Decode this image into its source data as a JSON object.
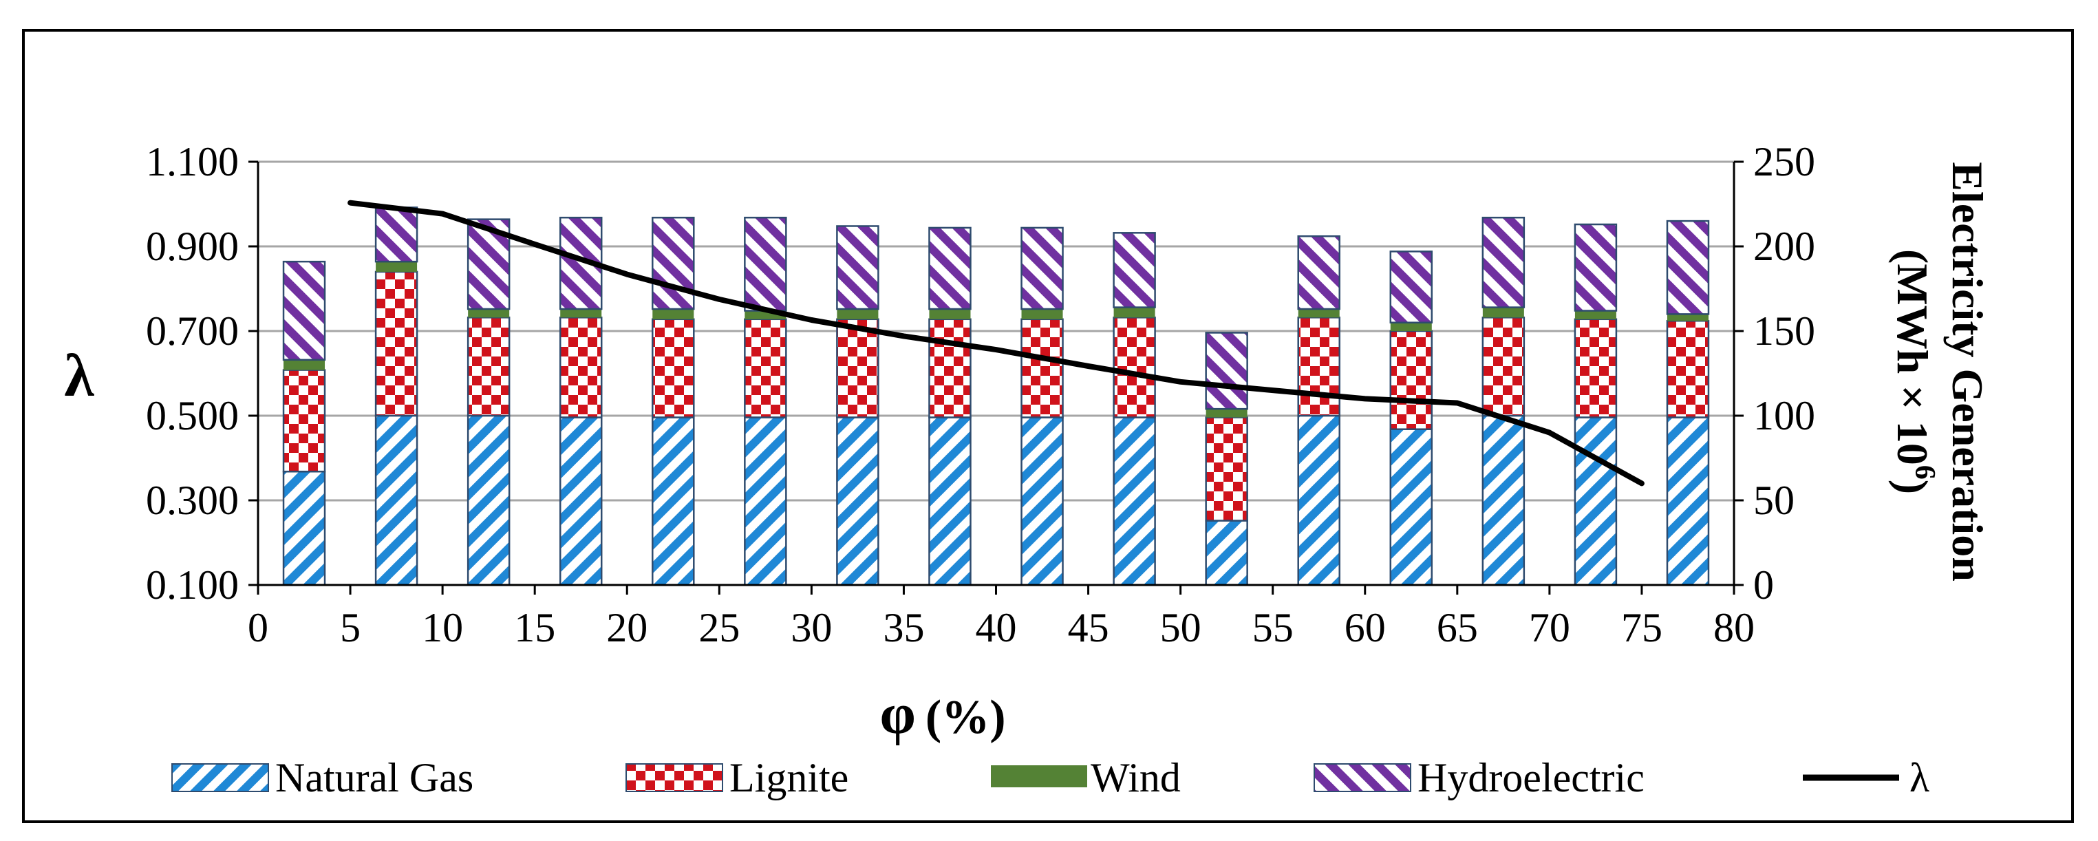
{
  "chart_data": {
    "type": "bar",
    "subtype": "stacked-bar-with-line",
    "x_axis": {
      "label_symbol": "φ",
      "label_unit": "(%)",
      "range": [
        0,
        80
      ],
      "ticks": [
        "0",
        "5",
        "10",
        "15",
        "20",
        "25",
        "30",
        "35",
        "40",
        "45",
        "50",
        "55",
        "60",
        "65",
        "70",
        "75",
        "80"
      ]
    },
    "y_left": {
      "label": "λ",
      "range": [
        0.1,
        1.1
      ],
      "ticks": [
        "0.100",
        "0.300",
        "0.500",
        "0.700",
        "0.900",
        "1.100"
      ],
      "grid": true
    },
    "y_right": {
      "label_line1": "Electricity Generation",
      "label_line2_prefix": "(MWh × 10",
      "label_line2_sup": "6",
      "label_line2_suffix": ")",
      "range": [
        0,
        250
      ],
      "ticks": [
        "0",
        "50",
        "100",
        "150",
        "200",
        "250"
      ]
    },
    "bar_x_centers": [
      2.5,
      7.5,
      12.5,
      17.5,
      22.5,
      27.5,
      32.5,
      37.5,
      42.5,
      47.5,
      52.5,
      57.5,
      62.5,
      67.5,
      72.5,
      77.5
    ],
    "series": [
      {
        "name": "Natural Gas",
        "pattern": "diagonal-stripes",
        "color": "#1f88d6",
        "values": [
          67,
          100,
          100,
          99,
          99,
          99,
          99,
          99,
          99,
          99,
          38,
          100,
          92,
          100,
          99,
          99
        ]
      },
      {
        "name": "Lignite",
        "pattern": "checker",
        "color": "#d0121b",
        "values": [
          60,
          85,
          58,
          59,
          58,
          58,
          58,
          58,
          58,
          59,
          61,
          58,
          58,
          58,
          58,
          57
        ]
      },
      {
        "name": "Wind",
        "pattern": "solid",
        "color": "#548235",
        "values": [
          6,
          6,
          5,
          5,
          6,
          5,
          6,
          6,
          6,
          6,
          5,
          5,
          5,
          6,
          5,
          4
        ]
      },
      {
        "name": "Hydroelectric",
        "pattern": "diagonal-stripes-reverse",
        "color": "#7030a0",
        "values": [
          58,
          32,
          53,
          54,
          54,
          55,
          49,
          48,
          48,
          44,
          45,
          43,
          42,
          53,
          51,
          55
        ]
      }
    ],
    "line": {
      "name": "λ",
      "color": "#000000",
      "x": [
        5,
        10,
        15,
        20,
        25,
        30,
        35,
        40,
        45,
        50,
        55,
        60,
        65,
        70,
        75
      ],
      "y": [
        1.003,
        0.977,
        0.905,
        0.834,
        0.775,
        0.726,
        0.688,
        0.656,
        0.617,
        0.58,
        0.56,
        0.54,
        0.53,
        0.46,
        0.34
      ]
    },
    "legend": {
      "position": "bottom",
      "items": [
        "Natural Gas",
        "Lignite",
        "Wind",
        "Hydroelectric",
        "λ"
      ]
    }
  }
}
